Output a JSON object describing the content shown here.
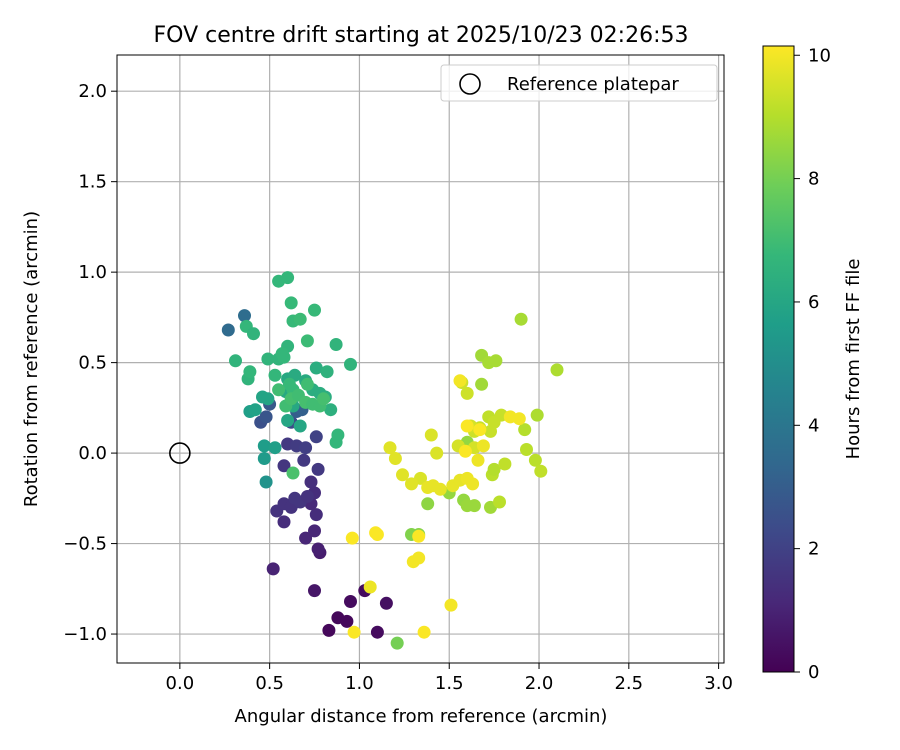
{
  "chart_data": {
    "type": "scatter",
    "title": "FOV centre drift starting at 2025/10/23 02:26:53",
    "xlabel": "Angular distance from reference (arcmin)",
    "ylabel": "Rotation from reference (arcmin)",
    "xlim": [
      -0.35,
      3.03
    ],
    "ylim": [
      -1.16,
      2.2
    ],
    "x_ticks": [
      0.0,
      0.5,
      1.0,
      1.5,
      2.0,
      2.5,
      3.0
    ],
    "x_tick_labels": [
      "0.0",
      "0.5",
      "1.0",
      "1.5",
      "2.0",
      "2.5",
      "3.0"
    ],
    "y_ticks": [
      -1.0,
      -0.5,
      0.0,
      0.5,
      1.0,
      1.5,
      2.0
    ],
    "y_tick_labels": [
      "−1.0",
      "−0.5",
      "0.0",
      "0.5",
      "1.0",
      "1.5",
      "2.0"
    ],
    "grid": true,
    "legend": {
      "position": "top-right",
      "entries": [
        "Reference platepar"
      ]
    },
    "reference_point": {
      "label": "Reference platepar",
      "x": 0.0,
      "y": 0.0
    },
    "colorbar": {
      "label": "Hours from first FF file",
      "min": 0,
      "max": 10.15,
      "ticks": [
        0,
        2,
        4,
        6,
        8,
        10
      ],
      "tick_labels": [
        "0",
        "2",
        "4",
        "6",
        "8",
        "10"
      ],
      "colormap": "viridis",
      "colors": [
        "#440154",
        "#482878",
        "#3e4989",
        "#31688e",
        "#26828e",
        "#1f9e89",
        "#35b779",
        "#6ece58",
        "#b5de2b",
        "#fde725"
      ]
    },
    "points": [
      [
        0.83,
        -0.98,
        0.2
      ],
      [
        0.88,
        -0.91,
        0.2
      ],
      [
        0.93,
        -0.93,
        0.2
      ],
      [
        0.95,
        -0.82,
        0.3
      ],
      [
        1.03,
        -0.76,
        0.3
      ],
      [
        1.1,
        -0.99,
        0.3
      ],
      [
        1.15,
        -0.83,
        0.4
      ],
      [
        0.75,
        -0.76,
        0.6
      ],
      [
        0.78,
        -0.55,
        0.8
      ],
      [
        0.77,
        -0.53,
        0.9
      ],
      [
        0.52,
        -0.64,
        1.0
      ],
      [
        0.7,
        -0.47,
        1.1
      ],
      [
        0.75,
        -0.43,
        1.1
      ],
      [
        0.76,
        -0.34,
        1.3
      ],
      [
        0.73,
        -0.28,
        1.2
      ],
      [
        0.75,
        -0.22,
        1.3
      ],
      [
        0.73,
        -0.16,
        1.4
      ],
      [
        0.58,
        -0.38,
        1.3
      ],
      [
        0.54,
        -0.32,
        1.5
      ],
      [
        0.58,
        -0.28,
        1.5
      ],
      [
        0.62,
        -0.3,
        1.5
      ],
      [
        0.64,
        -0.25,
        1.6
      ],
      [
        0.67,
        -0.27,
        1.6
      ],
      [
        0.71,
        -0.24,
        1.5
      ],
      [
        0.58,
        -0.07,
        1.6
      ],
      [
        0.69,
        -0.04,
        1.7
      ],
      [
        0.77,
        -0.09,
        1.7
      ],
      [
        0.6,
        0.05,
        1.7
      ],
      [
        0.65,
        0.04,
        1.8
      ],
      [
        0.7,
        0.03,
        1.9
      ],
      [
        0.76,
        0.09,
        2.0
      ],
      [
        0.62,
        0.17,
        2.3
      ],
      [
        0.45,
        0.17,
        2.5
      ],
      [
        0.48,
        0.2,
        2.7
      ],
      [
        0.5,
        0.27,
        2.8
      ],
      [
        0.65,
        0.23,
        3.0
      ],
      [
        0.68,
        0.24,
        3.1
      ],
      [
        0.27,
        0.68,
        3.5
      ],
      [
        0.36,
        0.76,
        3.6
      ],
      [
        0.48,
        -0.16,
        5.2
      ],
      [
        0.47,
        -0.03,
        5.5
      ],
      [
        0.47,
        0.04,
        5.6
      ],
      [
        0.53,
        0.03,
        5.7
      ],
      [
        0.39,
        0.23,
        5.7
      ],
      [
        0.42,
        0.24,
        5.8
      ],
      [
        0.46,
        0.31,
        5.9
      ],
      [
        0.49,
        0.3,
        5.9
      ],
      [
        0.6,
        0.18,
        6.0
      ],
      [
        0.63,
        0.26,
        6.1
      ],
      [
        0.67,
        0.15,
        6.0
      ],
      [
        0.59,
        0.34,
        6.1
      ],
      [
        0.6,
        0.41,
        6.1
      ],
      [
        0.64,
        0.43,
        6.2
      ],
      [
        0.7,
        0.4,
        6.2
      ],
      [
        0.74,
        0.35,
        6.3
      ],
      [
        0.78,
        0.33,
        6.3
      ],
      [
        0.76,
        0.47,
        6.3
      ],
      [
        0.81,
        0.31,
        6.3
      ],
      [
        0.84,
        0.24,
        6.4
      ],
      [
        0.82,
        0.45,
        6.5
      ],
      [
        0.87,
        0.6,
        6.6
      ],
      [
        0.95,
        0.49,
        6.6
      ],
      [
        0.87,
        0.06,
        6.7
      ],
      [
        0.88,
        0.1,
        6.7
      ],
      [
        0.38,
        0.41,
        6.6
      ],
      [
        0.39,
        0.45,
        6.7
      ],
      [
        0.31,
        0.51,
        6.6
      ],
      [
        0.49,
        0.52,
        6.6
      ],
      [
        0.53,
        0.43,
        6.7
      ],
      [
        0.55,
        0.52,
        6.6
      ],
      [
        0.58,
        0.53,
        6.7
      ],
      [
        0.6,
        0.59,
        6.6
      ],
      [
        0.57,
        0.55,
        6.7
      ],
      [
        0.61,
        0.38,
        6.8
      ],
      [
        0.63,
        0.35,
        6.8
      ],
      [
        0.37,
        0.7,
        6.7
      ],
      [
        0.41,
        0.66,
        6.6
      ],
      [
        0.55,
        0.95,
        6.7
      ],
      [
        0.6,
        0.97,
        6.7
      ],
      [
        0.62,
        0.83,
        6.8
      ],
      [
        0.63,
        0.73,
        6.8
      ],
      [
        0.67,
        0.74,
        6.9
      ],
      [
        0.71,
        0.62,
        6.9
      ],
      [
        0.75,
        0.79,
        6.8
      ],
      [
        0.55,
        0.35,
        7.0
      ],
      [
        0.59,
        0.26,
        7.0
      ],
      [
        0.62,
        0.3,
        7.1
      ],
      [
        0.66,
        0.32,
        7.0
      ],
      [
        0.7,
        0.28,
        7.1
      ],
      [
        0.74,
        0.27,
        7.0
      ],
      [
        0.78,
        0.26,
        7.0
      ],
      [
        0.8,
        0.3,
        7.1
      ],
      [
        0.71,
        0.38,
        7.0
      ],
      [
        0.63,
        -0.11,
        7.2
      ],
      [
        1.21,
        -1.05,
        8.0
      ],
      [
        1.29,
        -0.45,
        8.2
      ],
      [
        1.33,
        -0.45,
        8.3
      ],
      [
        1.38,
        -0.28,
        8.4
      ],
      [
        1.5,
        -0.22,
        8.5
      ],
      [
        1.58,
        -0.26,
        8.5
      ],
      [
        1.6,
        -0.29,
        8.6
      ],
      [
        1.6,
        0.06,
        8.5
      ],
      [
        1.64,
        -0.29,
        8.6
      ],
      [
        1.73,
        -0.3,
        8.7
      ],
      [
        1.68,
        0.38,
        8.7
      ],
      [
        1.68,
        0.54,
        8.7
      ],
      [
        1.72,
        0.5,
        8.8
      ],
      [
        1.76,
        0.51,
        8.8
      ],
      [
        1.9,
        0.74,
        8.8
      ],
      [
        2.1,
        0.46,
        8.9
      ],
      [
        1.99,
        0.21,
        8.9
      ],
      [
        1.92,
        0.13,
        9.0
      ],
      [
        1.93,
        0.02,
        9.1
      ],
      [
        1.98,
        -0.04,
        9.1
      ],
      [
        2.01,
        -0.1,
        9.2
      ],
      [
        1.74,
        -0.12,
        9.1
      ],
      [
        1.75,
        -0.09,
        9.0
      ],
      [
        1.78,
        -0.27,
        9.1
      ],
      [
        1.81,
        -0.06,
        9.2
      ],
      [
        1.72,
        0.2,
        9.2
      ],
      [
        1.75,
        0.17,
        9.3
      ],
      [
        1.79,
        0.21,
        9.3
      ],
      [
        1.73,
        0.12,
        9.3
      ],
      [
        1.67,
        0.14,
        9.3
      ],
      [
        1.64,
        0.12,
        9.4
      ],
      [
        1.6,
        0.33,
        9.4
      ],
      [
        1.57,
        0.39,
        9.4
      ],
      [
        1.62,
        0.15,
        9.5
      ],
      [
        1.64,
        0.03,
        9.5
      ],
      [
        1.55,
        0.04,
        9.5
      ],
      [
        1.4,
        0.1,
        9.6
      ],
      [
        1.43,
        0.0,
        9.6
      ],
      [
        1.34,
        -0.14,
        9.6
      ],
      [
        1.29,
        -0.17,
        9.7
      ],
      [
        1.24,
        -0.12,
        9.7
      ],
      [
        1.2,
        -0.03,
        9.7
      ],
      [
        1.17,
        0.03,
        9.7
      ],
      [
        1.38,
        -0.19,
        9.8
      ],
      [
        1.41,
        -0.18,
        9.8
      ],
      [
        1.45,
        -0.2,
        9.8
      ],
      [
        1.52,
        -0.18,
        9.8
      ],
      [
        1.56,
        -0.15,
        9.8
      ],
      [
        1.6,
        -0.14,
        9.9
      ],
      [
        1.63,
        -0.17,
        9.9
      ],
      [
        1.66,
        -0.04,
        9.9
      ],
      [
        1.69,
        0.04,
        9.9
      ],
      [
        1.56,
        0.4,
        10.0
      ],
      [
        1.84,
        0.2,
        10.0
      ],
      [
        1.89,
        0.19,
        10.0
      ],
      [
        1.67,
        0.13,
        10.1
      ],
      [
        1.6,
        0.15,
        10.1
      ],
      [
        1.59,
        0.01,
        10.1
      ],
      [
        1.3,
        -0.6,
        10.0
      ],
      [
        1.33,
        -0.58,
        10.0
      ],
      [
        1.33,
        -0.46,
        10.1
      ],
      [
        1.09,
        -0.44,
        10.1
      ],
      [
        1.1,
        -0.45,
        10.1
      ],
      [
        0.96,
        -0.47,
        10.1
      ],
      [
        1.06,
        -0.74,
        9.9
      ],
      [
        0.97,
        -0.99,
        10.1
      ],
      [
        1.36,
        -0.99,
        10.1
      ],
      [
        1.51,
        -0.84,
        10.0
      ]
    ]
  }
}
